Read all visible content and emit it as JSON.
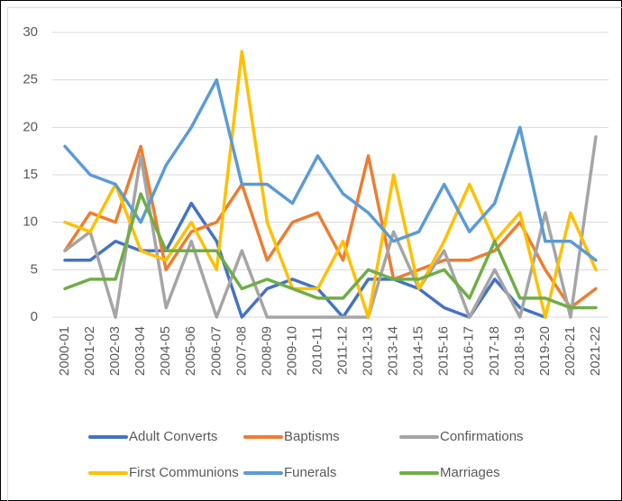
{
  "chart_data": {
    "type": "line",
    "categories": [
      "2000-01",
      "2001-02",
      "2002-03",
      "2003-04",
      "2004-05",
      "2005-06",
      "2006-07",
      "2007-08",
      "2008-09",
      "2009-10",
      "2010-11",
      "2011-12",
      "2012-13",
      "2013-14",
      "2014-15",
      "2015-16",
      "2016-17",
      "2017-18",
      "2018-19",
      "2019-20",
      "2020-21",
      "2021-22"
    ],
    "series": [
      {
        "name": "Adult Converts",
        "color": "#4472c4",
        "values": [
          6,
          6,
          8,
          7,
          7,
          12,
          8,
          0,
          3,
          4,
          3,
          0,
          4,
          4,
          3,
          1,
          0,
          4,
          1,
          0,
          null,
          null
        ]
      },
      {
        "name": "Baptisms",
        "color": "#ed7d31",
        "values": [
          7,
          11,
          10,
          18,
          5,
          9,
          10,
          14,
          6,
          10,
          11,
          6,
          17,
          4,
          5,
          6,
          6,
          7,
          10,
          5,
          1,
          3
        ]
      },
      {
        "name": "Confirmations",
        "color": "#a5a5a5",
        "values": [
          7,
          9,
          0,
          17,
          1,
          8,
          0,
          7,
          0,
          0,
          0,
          0,
          0,
          9,
          3,
          7,
          0,
          5,
          0,
          11,
          0,
          19
        ]
      },
      {
        "name": "First Communions",
        "color": "#ffc000",
        "values": [
          10,
          9,
          14,
          7,
          6,
          10,
          5,
          28,
          10,
          3,
          3,
          8,
          0,
          15,
          3,
          8,
          14,
          8,
          11,
          0,
          11,
          5
        ]
      },
      {
        "name": "Funerals",
        "color": "#5b9bd5",
        "values": [
          18,
          15,
          14,
          10,
          16,
          20,
          25,
          14,
          14,
          12,
          17,
          13,
          11,
          8,
          9,
          14,
          9,
          12,
          20,
          8,
          8,
          6
        ]
      },
      {
        "name": "Marriages",
        "color": "#70ad47",
        "values": [
          3,
          4,
          4,
          13,
          7,
          7,
          7,
          3,
          4,
          3,
          2,
          2,
          5,
          4,
          4,
          5,
          2,
          8,
          2,
          2,
          1,
          1
        ]
      }
    ],
    "ylim": [
      0,
      30
    ],
    "yticks": [
      0,
      5,
      10,
      15,
      20,
      25,
      30
    ],
    "grid": true,
    "legend": "bottom"
  }
}
